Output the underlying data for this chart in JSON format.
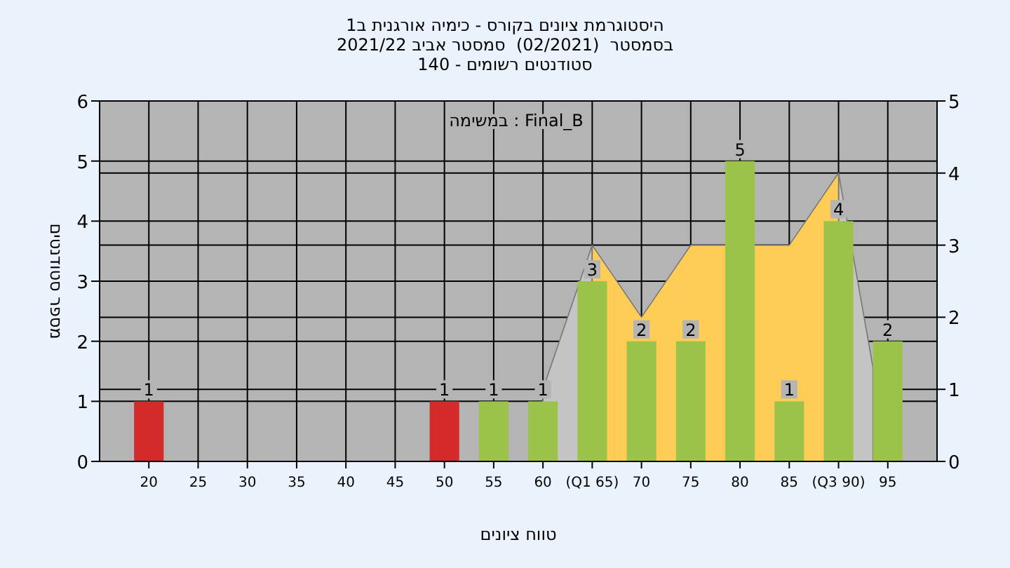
{
  "chart_data": {
    "type": "bar",
    "title": "היסטוגרמת ציונים בקורס - כימיה אורגנית ב1",
    "subtitle": "בסמסטר  (02/2021)  סמסטר אביב 2021/22",
    "annotations": [
      "סטודנטים רשומים - 140",
      "במשימה : Final_B"
    ],
    "xlabel": "טווח ציונים",
    "ylabel": "מספר סטודנטים",
    "xlim": [
      15,
      100
    ],
    "xticks": [
      20,
      25,
      30,
      35,
      40,
      45,
      50,
      55,
      60,
      {
        "value": 65,
        "label": "(Q1 65)"
      },
      70,
      75,
      80,
      85,
      {
        "value": 90,
        "label": "(Q3 90)"
      },
      95
    ],
    "ylim": [
      0,
      6
    ],
    "yticks": [
      0,
      1,
      2,
      3,
      4,
      5,
      6
    ],
    "y2lim": [
      0,
      5
    ],
    "y2ticks": [
      0,
      1,
      2,
      3,
      4,
      5
    ],
    "grid": true,
    "series": [
      {
        "type": "area",
        "axis": "y2",
        "color": "#c4c4c4",
        "x": [
          60,
          65
        ],
        "values": [
          1,
          3
        ]
      },
      {
        "type": "area",
        "axis": "y2",
        "color": "#c4c4c4",
        "x": [
          90,
          93.5
        ],
        "values": [
          4,
          1.3
        ]
      },
      {
        "type": "area",
        "axis": "y2",
        "color": "#ffcc55",
        "x": [
          65,
          70,
          75,
          85,
          90
        ],
        "values": [
          3,
          2,
          3,
          3,
          4
        ]
      },
      {
        "x": [
          20,
          50,
          55,
          60,
          65,
          70,
          75,
          80,
          85,
          90,
          95
        ],
        "values": [
          1,
          1,
          1,
          1,
          3,
          2,
          2,
          5,
          1,
          4,
          2
        ],
        "value_labels": [
          "1",
          "1",
          "1",
          "1",
          "3",
          "2",
          "2",
          "5",
          "1",
          "4",
          "2"
        ],
        "colors": [
          "#d42a2a",
          "#d42a2a",
          "#9bc34a",
          "#9bc34a",
          "#9bc34a",
          "#9bc34a",
          "#9bc34a",
          "#9bc34a",
          "#9bc34a",
          "#9bc34a",
          "#9bc34a"
        ]
      }
    ]
  }
}
